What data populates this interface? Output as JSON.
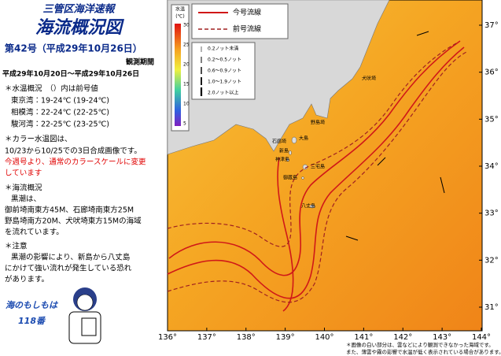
{
  "header": {
    "agency": "三管区海洋速報",
    "title": "海流概況図",
    "issue": "第42号（平成29年10月26日）",
    "period_label": "観測期間",
    "period": "平成29年10月20日～平成29年10月26日"
  },
  "temperature": {
    "heading": "＊水温概況　（）内は前号値",
    "rows": [
      "東京湾：19-24℃ (19-24℃)",
      "相模湾：22-24℃ (22-25℃)",
      "駿河湾：22-25℃ (23-25℃)"
    ]
  },
  "color_note": {
    "heading": "＊カラー水温図は、",
    "text": "10/23から10/25での3日合成画像です。",
    "notice": [
      "今週号より、通常のカラースケールに変更",
      "しています"
    ]
  },
  "current": {
    "heading": "＊海流概況",
    "lines": [
      "黒潮は、",
      "御前埼南東方45M、石廊埼南東方25M",
      "野島埼南方20M、犬吠埼東方15Mの海域",
      "を流れています。"
    ]
  },
  "caution": {
    "heading": "＊注意",
    "lines": [
      "黒潮の影響により、新島から八丈島",
      "にかけて強い流れが発生している恐れ",
      "があります。"
    ]
  },
  "slogan": [
    "海のもしもは",
    "118番"
  ],
  "map": {
    "lon_labels": [
      "136°",
      "137°",
      "138°",
      "139°",
      "140°",
      "141°",
      "142°",
      "143°",
      "144°"
    ],
    "lat_labels": [
      "37°",
      "36°",
      "35°",
      "34°",
      "33°",
      "32°",
      "31°"
    ],
    "legend": {
      "current": "今号流線",
      "previous": "前号流線"
    },
    "colorbar": {
      "title": "水温",
      "unit": "(℃)",
      "ticks": [
        "30",
        "25",
        "20",
        "15",
        "10",
        "5"
      ]
    },
    "speeds": [
      "0.2ノット未満",
      "0.2～0.5ノット",
      "0.6～0.9ノット",
      "1.0～1.9ノット",
      "2.0ノット以上"
    ],
    "places": [
      "大島",
      "新島",
      "神津島",
      "三宅島",
      "御蔵島",
      "八丈島",
      "石廊埼",
      "野島埼",
      "犬吠埼"
    ],
    "footnote": [
      "＊画像の白い部分は、雲などにより観測できなかった海域です。",
      "また、薄雲や霧の影響で水温が低く表示されている場合があります。"
    ]
  }
}
